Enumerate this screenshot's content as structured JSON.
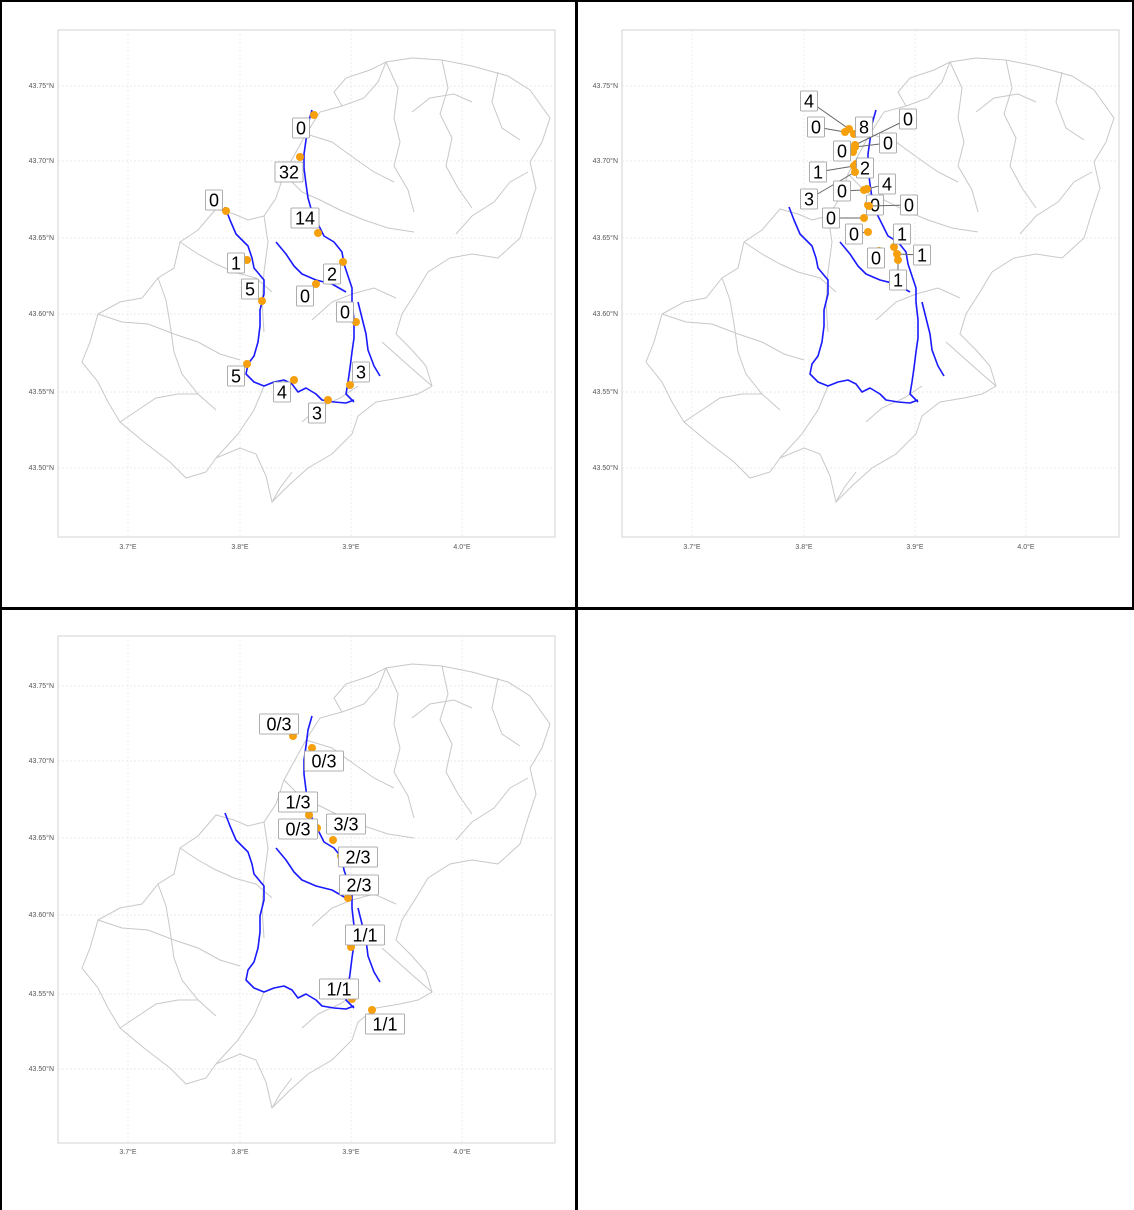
{
  "axes": {
    "lon_ticks": [
      "3.7°E",
      "3.8°E",
      "3.9°E",
      "4.0°E"
    ],
    "lat_ticks": [
      "43.75°N",
      "43.70°N",
      "43.65°N",
      "43.60°N",
      "43.55°N",
      "43.50°N"
    ]
  },
  "colors": {
    "river": "#1a1aff",
    "site": "#f5a00c",
    "boundary": "#c8c8c8",
    "grid": "#e4e4e4",
    "border": "#000000"
  },
  "maps": [
    {
      "name": "counts-map",
      "labels": [
        "0",
        "32",
        "0",
        "14",
        "1",
        "5",
        "2",
        "0",
        "0",
        "5",
        "4",
        "3",
        "3"
      ]
    },
    {
      "name": "leader-counts-map",
      "labels": [
        "4",
        "0",
        "8",
        "0",
        "0",
        "0",
        "1",
        "2",
        "3",
        "0",
        "4",
        "0",
        "0",
        "0",
        "0",
        "1",
        "0",
        "1",
        "1"
      ]
    },
    {
      "name": "ratio-map",
      "labels": [
        "0/3",
        "0/3",
        "1/3",
        "0/3",
        "3/3",
        "2/3",
        "2/3",
        "1/1",
        "1/1",
        "1/1"
      ]
    }
  ]
}
